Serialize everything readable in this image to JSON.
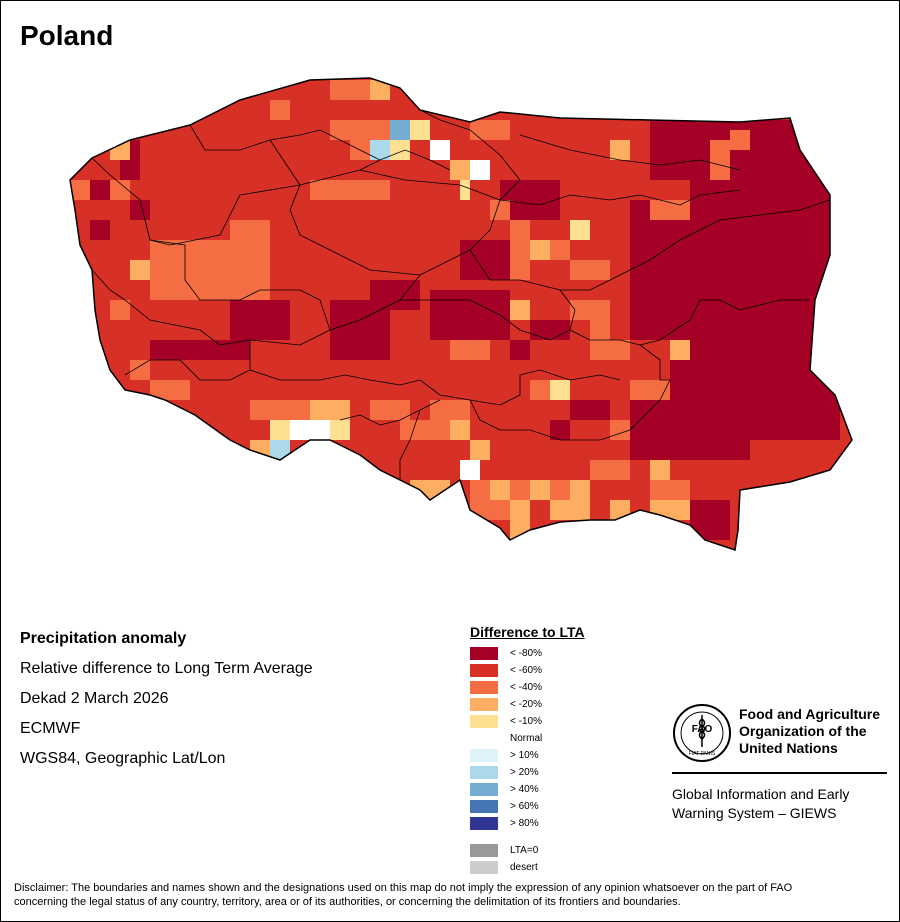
{
  "title": "Poland",
  "info": {
    "heading": "Precipitation anomaly",
    "subtitle": "Relative difference to Long Term Average",
    "period": "Dekad 2 March 2026",
    "source": "ECMWF",
    "projection": "WGS84, Geographic Lat/Lon"
  },
  "legend": {
    "title": "Difference to LTA",
    "classes": [
      {
        "label": "< -80%",
        "color": "#a50026"
      },
      {
        "label": "< -60%",
        "color": "#d73027"
      },
      {
        "label": "< -40%",
        "color": "#f46d43"
      },
      {
        "label": "< -20%",
        "color": "#fdae61"
      },
      {
        "label": "< -10%",
        "color": "#fee090"
      },
      {
        "label": "Normal",
        "color": "#ffffff"
      },
      {
        "label": "> 10%",
        "color": "#e0f3f8"
      },
      {
        "label": "> 20%",
        "color": "#abd9e9"
      },
      {
        "label": "> 40%",
        "color": "#74add1"
      },
      {
        "label": "> 60%",
        "color": "#4575b4"
      },
      {
        "label": "> 80%",
        "color": "#313695"
      }
    ],
    "extra": [
      {
        "label": "LTA=0",
        "color": "#999999"
      },
      {
        "label": "desert",
        "color": "#cccccc"
      }
    ]
  },
  "fao": {
    "name_line1": "Food and Agriculture",
    "name_line2": "Organization of the",
    "name_line3": "United Nations",
    "logo_text": "FAO",
    "logo_motto": "FIAT PANIS",
    "giews_line1": "Global Information and Early",
    "giews_line2": "Warning System – GIEWS"
  },
  "disclaimer_line1": "Disclaimer: The boundaries and names shown and the designations used on this map do not imply the expression of any opinion whatsoever on the part of FAO",
  "disclaimer_line2": "concerning the legal status of any country, territory, area or of its authorities, or concerning the delimitation of its frontiers and boundaries."
}
